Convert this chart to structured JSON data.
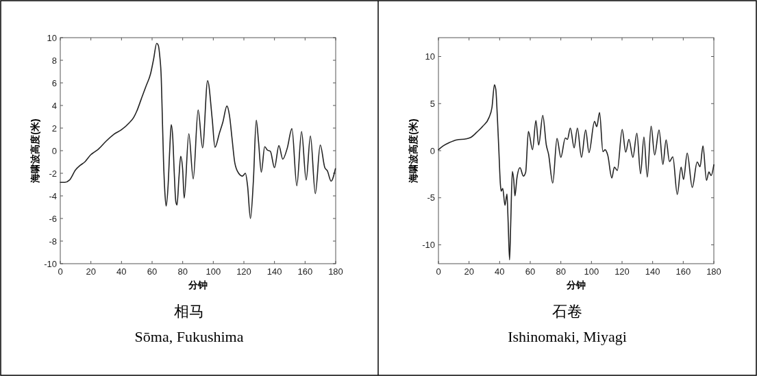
{
  "chart_data": [
    {
      "type": "line",
      "xlabel": "分钟",
      "ylabel": "海啸波高度(米)",
      "annotations": [
        "相马",
        "Sōma, Fukushima"
      ],
      "xlim": [
        0,
        180
      ],
      "ylim": [
        -10,
        10
      ],
      "xticks": [
        0,
        20,
        40,
        60,
        80,
        100,
        120,
        140,
        160,
        180
      ],
      "yticks": [
        -10,
        -8,
        -6,
        -4,
        -2,
        0,
        2,
        4,
        6,
        8,
        10
      ],
      "grid": false,
      "color": "#222222",
      "x": [
        0,
        3,
        6,
        10,
        13,
        16,
        20,
        22,
        25,
        30,
        35,
        40,
        45,
        48,
        50,
        53,
        56,
        59,
        61,
        63,
        64,
        65,
        66,
        66.5,
        67.5,
        68.5,
        69.2,
        70.5,
        71.5,
        72.5,
        73.5,
        74.5,
        75.5,
        76.3,
        77.5,
        78.7,
        80,
        81,
        84,
        86.9,
        90.1,
        93,
        96.3,
        99.3,
        101.1,
        104,
        106.3,
        108.9,
        110.7,
        112.2,
        114.1,
        116.6,
        119.1,
        121,
        122.4,
        124.3,
        126.2,
        128.1,
        129.6,
        131.4,
        133.6,
        135.4,
        137.3,
        140,
        142.9,
        145.4,
        148.4,
        151.4,
        154.6,
        157.7,
        160.7,
        163.5,
        166.7,
        169.9,
        172.9,
        174.6,
        177,
        179.8
      ],
      "values": [
        -2.8,
        -2.8,
        -2.6,
        -1.7,
        -1.3,
        -1,
        -0.35,
        -0.15,
        0.15,
        0.85,
        1.45,
        1.85,
        2.45,
        2.95,
        3.5,
        4.6,
        5.7,
        6.8,
        8.1,
        9.5,
        9.35,
        8.4,
        6.4,
        4,
        -1,
        -4,
        -4.9,
        -3,
        0,
        2.3,
        1.2,
        -2,
        -4.5,
        -4.8,
        -2.5,
        -0.5,
        -1.7,
        -4.2,
        1.5,
        -2.5,
        3.6,
        0.25,
        6.2,
        2.8,
        0.3,
        1.55,
        2.55,
        3.95,
        3,
        1.15,
        -1.1,
        -2,
        -2.25,
        -2,
        -3.1,
        -6,
        -2.7,
        2.7,
        0.75,
        -1.9,
        0.35,
        0.05,
        -0.05,
        -1.5,
        0.45,
        -0.75,
        0.25,
        1.95,
        -3.1,
        1.7,
        -2.6,
        1.3,
        -3.8,
        0.5,
        -1.5,
        -1.8,
        -2.7,
        -1.6
      ]
    },
    {
      "type": "line",
      "xlabel": "分钟",
      "ylabel": "海啸波高度(米)",
      "annotations": [
        "石卷",
        "Ishinomaki, Miyagi"
      ],
      "xlim": [
        0,
        180
      ],
      "ylim": [
        -12,
        12
      ],
      "xticks": [
        0,
        20,
        40,
        60,
        80,
        100,
        120,
        140,
        160,
        180
      ],
      "yticks": [
        -10,
        -5,
        0,
        5,
        10
      ],
      "grid": false,
      "color": "#222222",
      "x": [
        0,
        3,
        7,
        12,
        18,
        21,
        25,
        29,
        33,
        35,
        36.6,
        37.5,
        38.5,
        39.5,
        40.5,
        41,
        42,
        43.5,
        44.8,
        45.5,
        46.5,
        47.2,
        48.3,
        49.2,
        50,
        51.3,
        53.3,
        55.5,
        57,
        58.8,
        61.5,
        63.7,
        65.5,
        68.2,
        70.5,
        72,
        74.7,
        77.5,
        80,
        82.9,
        84.3,
        86.2,
        88.7,
        90.8,
        93.5,
        96.2,
        98.4,
        102,
        103.5,
        105.3,
        107.5,
        108.9,
        110.7,
        113.3,
        115,
        116.9,
        120.1,
        122.4,
        124.5,
        127.1,
        129.7,
        132.1,
        134.3,
        136.5,
        139,
        141.3,
        144.2,
        146.7,
        148.8,
        151,
        153.2,
        156.1,
        158.6,
        160.2,
        162.6,
        165.9,
        169.1,
        171,
        172.9,
        175.2,
        176.8,
        178.2,
        180
      ],
      "values": [
        0.1,
        0.5,
        0.85,
        1.15,
        1.25,
        1.4,
        1.95,
        2.6,
        3.5,
        4.6,
        7,
        6.5,
        3.6,
        0,
        -3.6,
        -4.3,
        -4,
        -5.8,
        -4.6,
        -7.3,
        -11.6,
        -8,
        -2.2,
        -3.1,
        -4.8,
        -2.9,
        -1.8,
        -2.7,
        -2.3,
        2.05,
        0.1,
        3.2,
        0.6,
        3.75,
        0.6,
        -0.4,
        -3.45,
        1.3,
        -0.7,
        1.35,
        1.2,
        2.4,
        0.3,
        2.4,
        -0.7,
        2.2,
        -0.2,
        3.1,
        2.55,
        4.05,
        -0.1,
        0.1,
        -0.5,
        -2.9,
        -1.75,
        -2.1,
        2.25,
        -0.15,
        1.2,
        -0.7,
        1.85,
        -2.45,
        1.45,
        -2.8,
        2.6,
        -0.45,
        2.2,
        -1.45,
        1.15,
        -1.15,
        -0.65,
        -4.65,
        -1.75,
        -3.05,
        -0.25,
        -3.9,
        -1.2,
        -1.7,
        0.5,
        -3.15,
        -2.25,
        -2.65,
        -1.5
      ]
    }
  ]
}
